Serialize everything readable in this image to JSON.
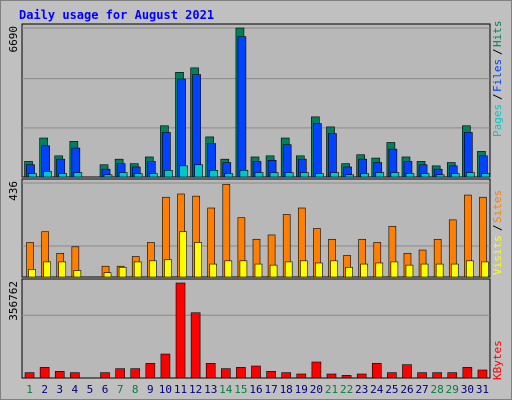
{
  "chart_data": {
    "type": "bar",
    "title": "Daily usage for August 2021",
    "categories": [
      "1",
      "2",
      "3",
      "4",
      "5",
      "6",
      "7",
      "8",
      "9",
      "10",
      "11",
      "12",
      "13",
      "14",
      "15",
      "16",
      "17",
      "18",
      "19",
      "20",
      "21",
      "22",
      "23",
      "24",
      "25",
      "26",
      "27",
      "28",
      "29",
      "30",
      "31"
    ],
    "weekend_days": [
      "1",
      "7",
      "8",
      "14",
      "15",
      "21",
      "22",
      "28",
      "29"
    ],
    "panels": [
      {
        "key": "hits",
        "ymax_label": "6690",
        "ymax": 6690,
        "series": [
          {
            "name": "Hits",
            "color": "#00805c",
            "values": [
              700,
              1750,
              950,
              1600,
              0,
              550,
              800,
              600,
              900,
              2300,
              4700,
              4900,
              1800,
              800,
              6690,
              900,
              950,
              1750,
              950,
              2700,
              2250,
              600,
              1000,
              850,
              1550,
              900,
              700,
              500,
              650,
              2300,
              1150
            ]
          },
          {
            "name": "Files",
            "color": "#0042ff",
            "values": [
              550,
              1400,
              800,
              1300,
              0,
              350,
              600,
              450,
              700,
              2000,
              4400,
              4600,
              1500,
              650,
              6300,
              700,
              750,
              1450,
              800,
              2400,
              1950,
              450,
              800,
              650,
              1250,
              700,
              550,
              350,
              500,
              2000,
              950
            ]
          },
          {
            "name": "Pages",
            "color": "#00c8c8",
            "values": [
              150,
              250,
              150,
              200,
              0,
              100,
              200,
              150,
              150,
              300,
              500,
              550,
              300,
              150,
              300,
              200,
              200,
              200,
              200,
              150,
              200,
              100,
              150,
              200,
              200,
              150,
              150,
              100,
              150,
              200,
              150
            ]
          }
        ]
      },
      {
        "key": "visits",
        "ymax_label": "436",
        "ymax": 436,
        "series": [
          {
            "name": "Sites",
            "color": "#ff8000",
            "values": [
              160,
              210,
              110,
              140,
              0,
              50,
              50,
              95,
              160,
              370,
              385,
              375,
              320,
              430,
              275,
              175,
              195,
              290,
              320,
              225,
              175,
              100,
              175,
              160,
              235,
              110,
              125,
              175,
              265,
              380,
              370
            ]
          },
          {
            "name": "Visits",
            "color": "#ffff00",
            "values": [
              35,
              70,
              70,
              30,
              0,
              20,
              45,
              70,
              75,
              80,
              210,
              160,
              60,
              75,
              75,
              60,
              55,
              70,
              75,
              65,
              75,
              45,
              60,
              65,
              70,
              55,
              60,
              60,
              60,
              75,
              70
            ]
          }
        ]
      },
      {
        "key": "kbytes",
        "ymax_label": "356762",
        "ymax": 356762,
        "series": [
          {
            "name": "KBytes",
            "color": "#ff0000",
            "values": [
              20000,
              40000,
              25000,
              20000,
              0,
              20000,
              35000,
              35000,
              55000,
              90000,
              356762,
              245000,
              55000,
              35000,
              40000,
              45000,
              25000,
              20000,
              15000,
              60000,
              15000,
              10000,
              15000,
              55000,
              20000,
              50000,
              20000,
              20000,
              20000,
              40000,
              30000
            ]
          }
        ]
      }
    ],
    "grid": true,
    "legend_placement": "right-vertical"
  }
}
